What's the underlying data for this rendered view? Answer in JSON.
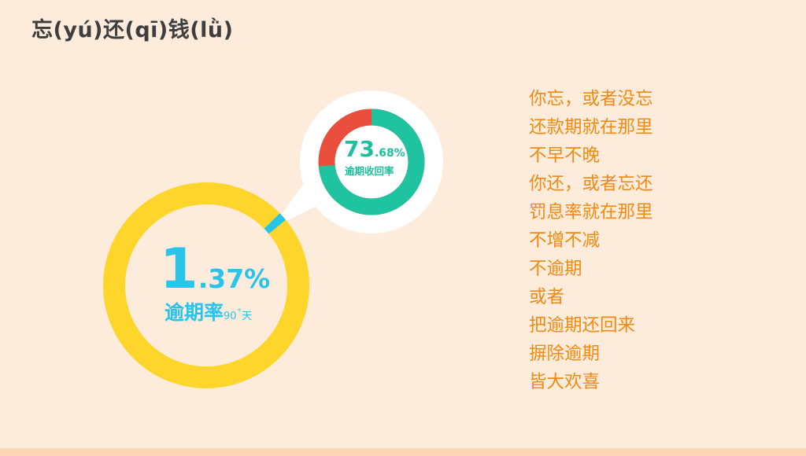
{
  "title": "忘(yú)还(qī)钱(lǜ)",
  "big_ring": {
    "value_int": "1",
    "value_dec": ".37%",
    "label": "逾期率",
    "sub_label": "90",
    "sub_sup": "+",
    "sub_unit": "天",
    "percent": 1.37,
    "color_ring": "#fed52a",
    "color_accent": "#29c4ea"
  },
  "small_ring": {
    "value_int": "73",
    "value_dec": ".68%",
    "label": "逾期收回率",
    "percent": 73.68,
    "color_main": "#1fc3a0",
    "color_rest": "#ea4e3d"
  },
  "poem": [
    "你忘，或者没忘",
    "还款期就在那里",
    "不早不晚",
    "你还，或者忘还",
    "罚息率就在那里",
    "不增不减",
    "不逾期",
    "或者",
    "把逾期还回来",
    "摒除逾期",
    "皆大欢喜"
  ],
  "colors": {
    "background": "#fdebdc",
    "poem_text": "#ef8a12",
    "title_text": "#3e3e3e"
  }
}
